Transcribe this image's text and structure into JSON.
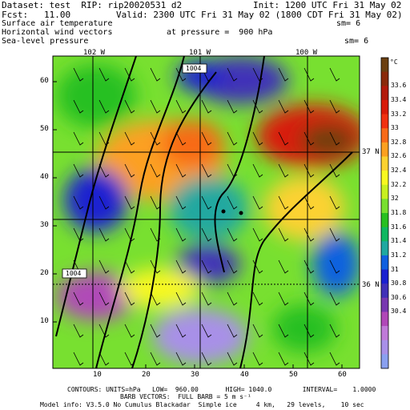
{
  "header": {
    "dataset_line": "Dataset: test  RIP: rip20020531 d2",
    "init_line": "Init: 1200 UTC Fri 31 May 02",
    "fcst_line": "Fcst:   11.00",
    "valid_line": "Valid: 2300 UTC Fri 31 May 02 (1800 CDT Fri 31 May 02)",
    "field1": "Surface air temperature",
    "field1_sm": "sm= 6",
    "field2": "Horizontal wind vectors",
    "field2_pressure": "at pressure =  900 hPa",
    "field3": "Sea-level pressure",
    "field3_sm": "sm= 6"
  },
  "map": {
    "lon_labels": [
      "102 W",
      "101 W",
      "100 W"
    ],
    "lat_labels": [
      "37 N",
      "36 N"
    ],
    "isobar_labels": [
      "1004",
      "1004"
    ],
    "x_ticks": [
      "10",
      "20",
      "30",
      "40",
      "50",
      "60"
    ],
    "y_ticks": [
      "60",
      "50",
      "40",
      "30",
      "20",
      "10"
    ]
  },
  "colorbar": {
    "unit": "°C",
    "labels": [
      "33.6",
      "33.4",
      "33.2",
      "33",
      "32.8",
      "32.6",
      "32.4",
      "32.2",
      "32",
      "31.8",
      "31.6",
      "31.4",
      "31.2",
      "31",
      "30.8",
      "30.6",
      "30.4"
    ],
    "colors": [
      "#6b3f10",
      "#8a2a0a",
      "#b21a0a",
      "#d81a08",
      "#f03010",
      "#f86a18",
      "#fca020",
      "#fcd230",
      "#f8f820",
      "#c8f020",
      "#78e030",
      "#28c020",
      "#10b860",
      "#20a8a0",
      "#1060e0",
      "#1a20d0",
      "#4030b8",
      "#7838b0",
      "#b048b8",
      "#c07ad8",
      "#a890e8",
      "#8aa0f0"
    ]
  },
  "footer": {
    "line1": "CONTOURS: UNITS=hPa   LOW=  960.00       HIGH= 1040.0        INTERVAL=    1.0000",
    "line2": "BARB VECTORS:  FULL BARB = 5 m s⁻¹",
    "line3": "Model info: V3.5.0 No Cumulus Blackadar  Simple ice     4 km,   29 levels,    10 sec"
  }
}
